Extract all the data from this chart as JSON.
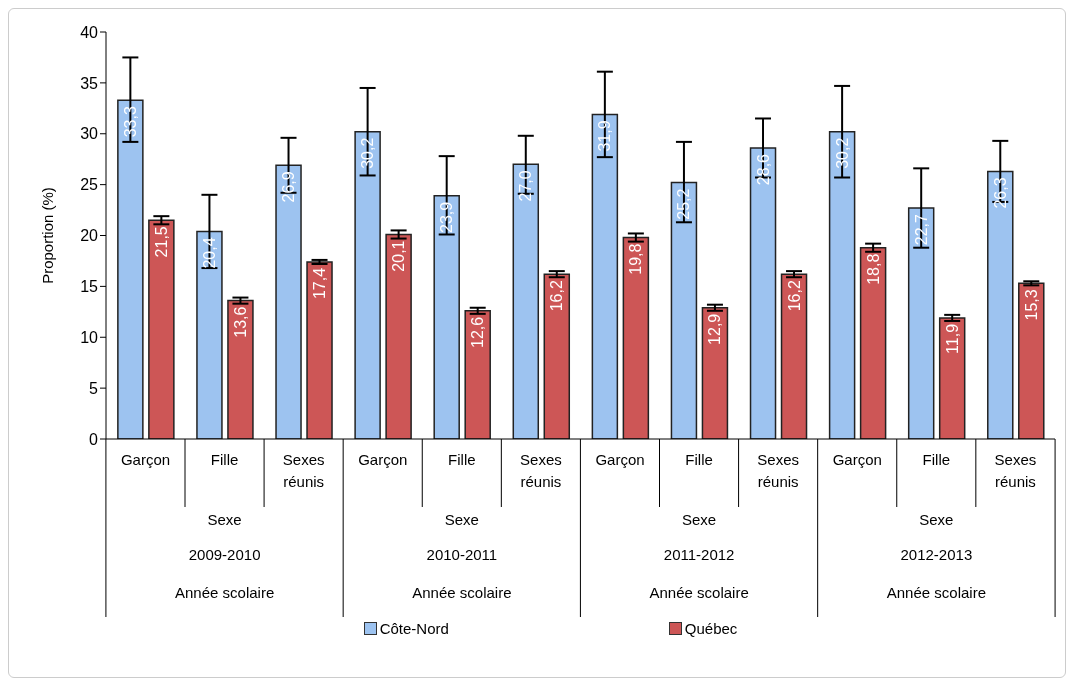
{
  "chart_data": {
    "type": "bar",
    "ylabel": "Proportion (%)",
    "categories": [
      "Garçon",
      "Fille",
      "Sexes réunis",
      "Garçon",
      "Fille",
      "Sexes réunis",
      "Garçon",
      "Fille",
      "Sexes réunis",
      "Garçon",
      "Fille",
      "Sexes réunis"
    ],
    "annotations": [
      "Sexe",
      "2009-2010",
      "Année scolaire",
      "Sexe",
      "2010-2011",
      "Année scolaire",
      "Sexe",
      "2011-2012",
      "Année scolaire",
      "Sexe",
      "2012-2013",
      "Année scolaire"
    ],
    "series": [
      {
        "name": "Côte-Nord",
        "color": "#9dc3f0",
        "values": [
          33.3,
          20.4,
          26.9,
          30.2,
          23.9,
          27.0,
          31.9,
          25.2,
          28.6,
          30.2,
          22.7,
          26.3
        ],
        "value_labels": [
          "33,3",
          "20,4",
          "26,9",
          "30,2",
          "23,9",
          "27,0",
          "31,9",
          "25,2",
          "28,6",
          "30,2",
          "22,7",
          "26,3"
        ],
        "errors": [
          [
            29.2,
            37.5
          ],
          [
            16.8,
            24.0
          ],
          [
            24.2,
            29.6
          ],
          [
            25.9,
            34.5
          ],
          [
            20.1,
            27.8
          ],
          [
            24.1,
            29.8
          ],
          [
            27.7,
            36.1
          ],
          [
            21.3,
            29.2
          ],
          [
            25.7,
            31.5
          ],
          [
            25.7,
            34.7
          ],
          [
            18.8,
            26.6
          ],
          [
            23.3,
            29.3
          ]
        ]
      },
      {
        "name": "Québec",
        "color": "#cd5656",
        "values": [
          21.5,
          13.6,
          17.4,
          20.1,
          12.6,
          16.2,
          19.8,
          12.9,
          16.2,
          18.8,
          11.9,
          15.3
        ],
        "value_labels": [
          "21,5",
          "13,6",
          "17,4",
          "20,1",
          "12,6",
          "16,2",
          "19,8",
          "12,9",
          "16,2",
          "18,8",
          "11,9",
          "15,3"
        ],
        "errors": [
          [
            21.1,
            21.9
          ],
          [
            13.3,
            13.9
          ],
          [
            17.2,
            17.6
          ],
          [
            19.7,
            20.5
          ],
          [
            12.3,
            12.9
          ],
          [
            15.9,
            16.5
          ],
          [
            19.4,
            20.2
          ],
          [
            12.6,
            13.2
          ],
          [
            15.9,
            16.5
          ],
          [
            18.4,
            19.2
          ],
          [
            11.6,
            12.2
          ],
          [
            15.1,
            15.5
          ]
        ]
      }
    ],
    "ylim": [
      0,
      40
    ],
    "yticks": [
      0,
      5,
      10,
      15,
      20,
      25,
      30,
      35,
      40
    ],
    "grid": false,
    "legend": "bottom"
  }
}
